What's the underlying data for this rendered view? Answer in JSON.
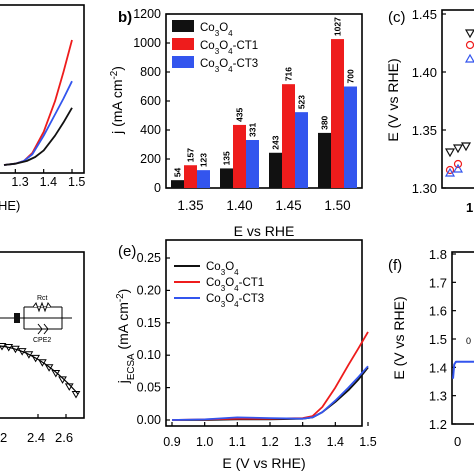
{
  "colors": {
    "co3o4": "#111111",
    "ct1": "#ee1c1c",
    "ct3": "#3355ee",
    "axis": "#000000"
  },
  "chart_data": [
    {
      "panel": "a",
      "type": "line",
      "panel_label": "",
      "xlabel": "HE)",
      "xticks": [
        "1.3",
        "1.4",
        "1.5"
      ],
      "xlim": [
        1.26,
        1.51
      ],
      "ylim": [
        0,
        1
      ],
      "series": [
        {
          "color_key": "ct1",
          "x": [
            1.26,
            1.3,
            1.33,
            1.36,
            1.4,
            1.44,
            1.47,
            1.5
          ],
          "y": [
            0.0,
            0.01,
            0.03,
            0.09,
            0.25,
            0.48,
            0.7,
            0.94
          ]
        },
        {
          "color_key": "ct3",
          "x": [
            1.26,
            1.3,
            1.33,
            1.36,
            1.4,
            1.44,
            1.47,
            1.5
          ],
          "y": [
            0.0,
            0.01,
            0.03,
            0.08,
            0.22,
            0.38,
            0.5,
            0.63
          ]
        },
        {
          "color_key": "co3o4",
          "x": [
            1.26,
            1.3,
            1.34,
            1.37,
            1.4,
            1.44,
            1.47,
            1.5
          ],
          "y": [
            0.0,
            0.01,
            0.03,
            0.06,
            0.11,
            0.22,
            0.32,
            0.43
          ]
        }
      ]
    },
    {
      "panel": "b",
      "type": "bar",
      "panel_label": "b)",
      "xlabel": "E vs RHE",
      "ylabel": "j (mA cm⁻²)",
      "categories": [
        "1.35",
        "1.40",
        "1.45",
        "1.50"
      ],
      "ylim": [
        0,
        1200
      ],
      "yticks": [
        "0",
        "200",
        "400",
        "600",
        "800",
        "1000",
        "1200"
      ],
      "series": [
        {
          "name": "Co₃O₄",
          "color_key": "co3o4",
          "values": [
            54,
            135,
            243,
            380
          ]
        },
        {
          "name": "Co₃O₄-CT1",
          "color_key": "ct1",
          "values": [
            157,
            435,
            716,
            1027
          ]
        },
        {
          "name": "Co₃O₄-CT3",
          "color_key": "ct3",
          "values": [
            123,
            331,
            523,
            700
          ]
        }
      ],
      "legend": "top-left"
    },
    {
      "panel": "c",
      "type": "scatter",
      "panel_label": "(c)",
      "ylabel": "E (V vs RHE)",
      "yticks": [
        "1.30",
        "1.35",
        "1.40",
        "1.45"
      ],
      "ylim": [
        1.3,
        1.45
      ],
      "xtick_fragment": "1"
    },
    {
      "panel": "d",
      "type": "scatter",
      "panel_label": "",
      "xticks": [
        "2.4",
        "2.6"
      ],
      "xtick_fragment": "2",
      "inset_labels": [
        "Rct",
        "CPE2"
      ]
    },
    {
      "panel": "e",
      "type": "line",
      "panel_label": "(e)",
      "xlabel": "E (V vs RHE)",
      "ylabel": "j_ECSA (mA cm⁻²)",
      "xticks": [
        "0.9",
        "1.0",
        "1.1",
        "1.2",
        "1.3",
        "1.4",
        "1.5"
      ],
      "yticks": [
        "0.00",
        "0.05",
        "0.10",
        "0.15",
        "0.20",
        "0.25"
      ],
      "xlim": [
        0.9,
        1.5
      ],
      "ylim": [
        -0.01,
        0.25
      ],
      "legend": "top-left",
      "series": [
        {
          "name": "Co₃O₄",
          "color_key": "co3o4",
          "x": [
            0.9,
            1.0,
            1.1,
            1.2,
            1.3,
            1.33,
            1.36,
            1.4,
            1.44,
            1.47,
            1.5
          ],
          "y": [
            0.0,
            0.0,
            0.001,
            0.001,
            0.002,
            0.004,
            0.012,
            0.028,
            0.046,
            0.062,
            0.081
          ]
        },
        {
          "name": "Co₃O₄-CT1",
          "color_key": "ct1",
          "x": [
            0.9,
            1.0,
            1.1,
            1.2,
            1.3,
            1.33,
            1.36,
            1.4,
            1.44,
            1.47,
            1.5
          ],
          "y": [
            0.0,
            0.001,
            0.002,
            0.002,
            0.003,
            0.006,
            0.02,
            0.05,
            0.085,
            0.11,
            0.136
          ]
        },
        {
          "name": "Co₃O₄-CT3",
          "color_key": "ct3",
          "x": [
            0.9,
            1.0,
            1.1,
            1.2,
            1.3,
            1.33,
            1.36,
            1.4,
            1.44,
            1.47,
            1.5
          ],
          "y": [
            0.0,
            0.001,
            0.004,
            0.003,
            0.002,
            0.004,
            0.012,
            0.03,
            0.05,
            0.066,
            0.083
          ]
        }
      ]
    },
    {
      "panel": "f",
      "type": "line",
      "panel_label": "(f)",
      "ylabel": "E (V vs RHE)",
      "yticks": [
        "1.2",
        "1.3",
        "1.4",
        "1.5",
        "1.6",
        "1.7",
        "1.8"
      ],
      "ylim": [
        1.2,
        1.8
      ],
      "xtick_fragment": "0",
      "series": [
        {
          "color_key": "ct3",
          "x": [
            0,
            0.02,
            0.05,
            0.1,
            0.2,
            0.4,
            1
          ],
          "y": [
            1.36,
            1.41,
            1.42,
            1.42,
            1.42,
            1.42,
            1.42
          ]
        }
      ]
    }
  ]
}
